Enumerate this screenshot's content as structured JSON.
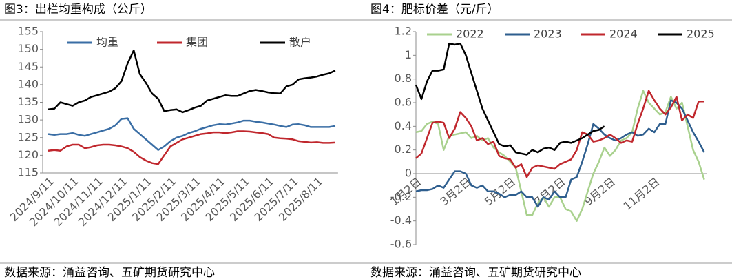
{
  "chart_data": [
    {
      "type": "line",
      "title": "图3：出栏均重构成（公斤）",
      "source": "数据来源：涌益咨询、五矿期货研究中心",
      "categories": [
        "2024/9/11",
        null,
        null,
        null,
        "2024/10/11",
        null,
        null,
        null,
        "2024/11/11",
        null,
        null,
        null,
        "2024/12/11",
        null,
        null,
        null,
        "2025/1/11",
        null,
        null,
        null,
        "2025/2/11",
        null,
        null,
        null,
        "2025/3/11",
        null,
        null,
        null,
        "2025/4/11",
        null,
        null,
        null,
        "2025/5/11",
        null,
        null,
        null,
        "2025/6/11",
        null,
        null,
        null,
        "2025/7/11",
        null,
        null,
        null,
        "2025/8/11",
        null,
        null,
        null
      ],
      "ylim": [
        115,
        155
      ],
      "yticks": [
        115,
        120,
        125,
        130,
        135,
        140,
        145,
        150,
        155
      ],
      "series": [
        {
          "name": "均重",
          "color": "#3a6ea5",
          "values": [
            126,
            125.8,
            126,
            126,
            126.3,
            125.8,
            125.5,
            126,
            126.5,
            127,
            127.5,
            128.5,
            130.3,
            130.5,
            127.5,
            126,
            124.5,
            123,
            121.5,
            122.5,
            124,
            125,
            125.5,
            126.3,
            126.8,
            127.5,
            128,
            128.5,
            128.8,
            128.7,
            129,
            129.3,
            129.8,
            129.8,
            129.5,
            129.3,
            129,
            128.7,
            128.3,
            128,
            128.7,
            128.8,
            128.5,
            128,
            128,
            128,
            128,
            128.3
          ]
        },
        {
          "name": "集团",
          "color": "#c0272d",
          "values": [
            121.3,
            121.5,
            121.3,
            122.5,
            123,
            123,
            122,
            122.3,
            122.8,
            123,
            123,
            122.8,
            122.5,
            122,
            121,
            119.5,
            118.5,
            117.8,
            117.5,
            120,
            122.5,
            123.5,
            124.5,
            125,
            125.5,
            126,
            126.2,
            126.5,
            126.5,
            126.3,
            126.5,
            126.8,
            126.8,
            126.7,
            126.5,
            126.3,
            126,
            125,
            124.8,
            124.7,
            124.5,
            124,
            123.8,
            123.6,
            123.7,
            123.5,
            123.5,
            123.6
          ]
        },
        {
          "name": "散户",
          "color": "#000000",
          "values": [
            133,
            133.2,
            135,
            134.5,
            134,
            135,
            135.5,
            136.5,
            137,
            137.5,
            138,
            139,
            141,
            146,
            149.7,
            143,
            140.5,
            137.5,
            136,
            132.5,
            132.8,
            133,
            132.2,
            132.8,
            133.5,
            134,
            135.5,
            136,
            136.5,
            137,
            136.8,
            136.8,
            137.5,
            138.2,
            138.5,
            138.2,
            137.8,
            137.6,
            137.5,
            139.5,
            140,
            141.5,
            141.8,
            142,
            142.3,
            142.8,
            143.2,
            144
          ]
        }
      ]
    },
    {
      "type": "line",
      "title": "图4：肥标价差（元/斤）",
      "source": "数据来源：涌益咨询、五矿期货研究中心",
      "categories": [
        "1月2日",
        null,
        null,
        null,
        null,
        null,
        null,
        null,
        null,
        "3月2日",
        null,
        null,
        null,
        null,
        null,
        null,
        null,
        "5月2日",
        null,
        null,
        null,
        null,
        null,
        null,
        null,
        null,
        "7月2日",
        null,
        null,
        null,
        null,
        null,
        null,
        null,
        null,
        "9月2日",
        null,
        null,
        null,
        null,
        null,
        null,
        null,
        "11月2日",
        null,
        null,
        null,
        null,
        null,
        null,
        null,
        null,
        null
      ],
      "ylim": [
        -0.6,
        1.2
      ],
      "yticks": [
        -0.6,
        -0.4,
        -0.2,
        0,
        0.2,
        0.4,
        0.6,
        0.8,
        1,
        1.2
      ],
      "series": [
        {
          "name": "2022",
          "color": "#a9d18e",
          "values": [
            0.35,
            0.36,
            0.42,
            0.44,
            0.42,
            0.2,
            0.32,
            0.33,
            0.34,
            0.35,
            0.3,
            0.32,
            0.28,
            0.3,
            0.22,
            0.18,
            0.15,
            0.1,
            0.05,
            -0.15,
            -0.35,
            -0.35,
            -0.25,
            -0.2,
            -0.28,
            -0.2,
            -0.2,
            -0.3,
            -0.32,
            -0.4,
            -0.3,
            -0.15,
            0,
            0.1,
            0.22,
            0.15,
            0.2,
            0.28,
            0.3,
            0.35,
            0.55,
            0.7,
            0.6,
            0.55,
            0.5,
            0.52,
            0.65,
            0.55,
            0.6,
            0.4,
            0.2,
            0.1,
            -0.05
          ]
        },
        {
          "name": "2023",
          "color": "#2e5e8e",
          "values": [
            -0.15,
            -0.14,
            -0.14,
            -0.13,
            -0.1,
            -0.12,
            -0.05,
            0.02,
            0.02,
            0,
            -0.1,
            -0.12,
            -0.1,
            -0.15,
            -0.15,
            -0.17,
            -0.2,
            -0.18,
            -0.18,
            -0.15,
            -0.2,
            -0.2,
            -0.28,
            -0.2,
            -0.22,
            -0.15,
            -0.2,
            -0.2,
            -0.05,
            -0.03,
            0.1,
            0.25,
            0.42,
            0.38,
            0.33,
            0.3,
            0.28,
            0.3,
            0.33,
            0.35,
            0.32,
            0.33,
            0.38,
            0.35,
            0.42,
            0.42,
            0.62,
            0.6,
            0.55,
            0.45,
            0.35,
            0.27,
            0.18
          ]
        },
        {
          "name": "2024",
          "color": "#c0272d",
          "values": [
            0.13,
            0.17,
            0.3,
            0.43,
            0.44,
            0.43,
            0.3,
            0.38,
            0.52,
            0.47,
            0.4,
            0.28,
            0.3,
            0.25,
            0.27,
            0.15,
            0.13,
            0.12,
            0.05,
            0.08,
            -0.03,
            0.05,
            0.07,
            0.06,
            0.05,
            0.04,
            0.08,
            0.1,
            0.12,
            0.2,
            0.35,
            0.33,
            0.27,
            0.28,
            0.3,
            0.33,
            0.3,
            0.26,
            0.28,
            0.27,
            0.42,
            0.55,
            0.7,
            0.62,
            0.55,
            0.5,
            0.56,
            0.65,
            0.45,
            0.5,
            0.47,
            0.61,
            0.61
          ]
        },
        {
          "name": "2025",
          "color": "#000000",
          "values": [
            0.75,
            0.63,
            0.78,
            0.87,
            0.87,
            0.88,
            1.1,
            1.09,
            1.1,
            1,
            0.85,
            0.7,
            0.55,
            0.45,
            0.35,
            0.25,
            0.23,
            0.24,
            0.18,
            0.17,
            0.16,
            0.2,
            0.18,
            0.21,
            0.22,
            0.2,
            0.26,
            0.27,
            0.26,
            0.28,
            0.3,
            0.33,
            0.36,
            0.37,
            0.4,
            null,
            null,
            null,
            null,
            null,
            null,
            null,
            null,
            null,
            null,
            null,
            null,
            null,
            null,
            null,
            null,
            null,
            null
          ]
        }
      ]
    }
  ]
}
